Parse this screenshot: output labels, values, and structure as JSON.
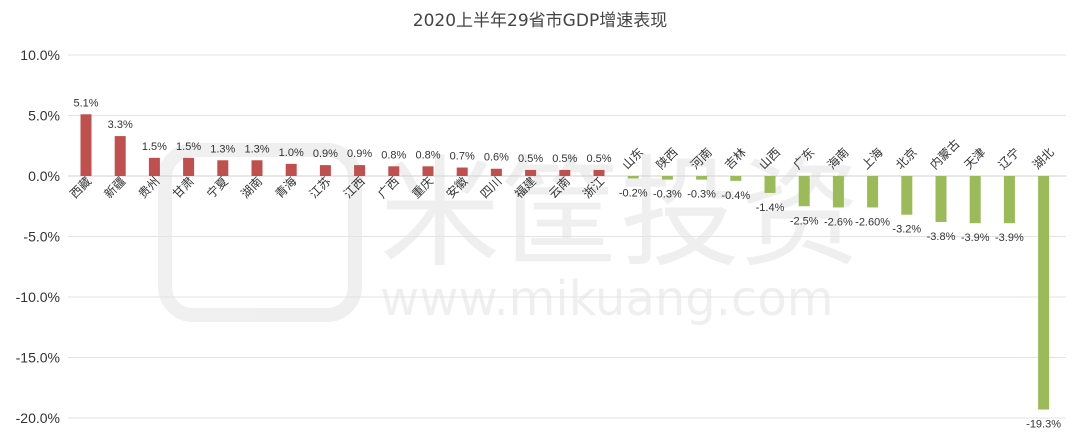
{
  "chart_data": {
    "type": "bar",
    "title": "2020上半年29省市GDP增速表现",
    "xlabel": "",
    "ylabel": "",
    "ylim": [
      -20,
      10
    ],
    "yticks": [
      10,
      5,
      0,
      -5,
      -10,
      -15,
      -20
    ],
    "ytick_labels": [
      "10.0%",
      "5.0%",
      "0.0%",
      "-5.0%",
      "-10.0%",
      "-15.0%",
      "-20.0%"
    ],
    "grid": true,
    "legend": "none",
    "categories": [
      "西藏",
      "新疆",
      "贵州",
      "甘肃",
      "宁夏",
      "湖南",
      "青海",
      "江苏",
      "江西",
      "广西",
      "重庆",
      "安徽",
      "四川",
      "福建",
      "云南",
      "浙江",
      "山东",
      "陕西",
      "河南",
      "吉林",
      "山西",
      "广东",
      "海南",
      "上海",
      "北京",
      "内蒙古",
      "天津",
      "辽宁",
      "湖北"
    ],
    "values": [
      5.1,
      3.3,
      1.5,
      1.5,
      1.3,
      1.3,
      1.0,
      0.9,
      0.9,
      0.8,
      0.8,
      0.7,
      0.6,
      0.5,
      0.5,
      0.5,
      -0.2,
      -0.3,
      -0.3,
      -0.4,
      -1.4,
      -2.5,
      -2.6,
      -2.6,
      -3.2,
      -3.8,
      -3.9,
      -3.9,
      -19.3
    ],
    "value_labels": [
      "5.1%",
      "3.3%",
      "1.5%",
      "1.5%",
      "1.3%",
      "1.3%",
      "1.0%",
      "0.9%",
      "0.9%",
      "0.8%",
      "0.8%",
      "0.7%",
      "0.6%",
      "0.5%",
      "0.5%",
      "0.5%",
      "-0.2%",
      "-0.3%",
      "-0.3%",
      "-0.4%",
      "-1.4%",
      "-2.5%",
      "-2.6%",
      "-2.60%",
      "-3.2%",
      "-3.8%",
      "-3.9%",
      "-3.9%",
      "-19.3%"
    ],
    "colors": {
      "positive": "#c0504d",
      "negative": "#9bbb59",
      "grid": "#e3e3e3"
    }
  },
  "watermark": {
    "text": "米筐投资 www.mikuang.com"
  }
}
